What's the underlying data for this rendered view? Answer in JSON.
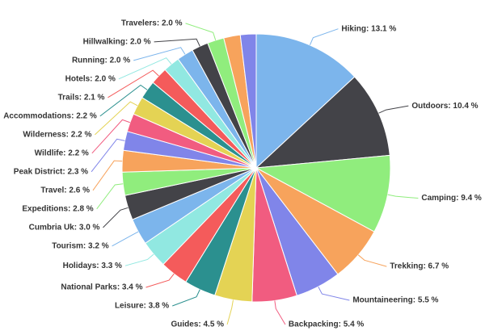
{
  "chart_data": {
    "type": "pie",
    "values": [
      13.1,
      10.4,
      9.4,
      6.7,
      5.5,
      5.4,
      4.5,
      3.8,
      3.4,
      3.3,
      3.2,
      3.0,
      2.8,
      2.6,
      2.3,
      2.2,
      2.2,
      2.2,
      2.1,
      2.0,
      2.0,
      2.0,
      2.0,
      2.0,
      1.9
    ],
    "value_labels": [
      "Hiking: 13.1 %",
      "Outdoors: 10.4 %",
      "Camping: 9.4 %",
      "Trekking: 6.7 %",
      "Mountaineering: 5.5 %",
      "Backpacking: 5.4 %",
      "Guides: 4.5 %",
      "Leisure: 3.8 %",
      "National Parks: 3.4 %",
      "Holidays: 3.3 %",
      "Tourism: 3.2 %",
      "Cumbria Uk: 3.0 %",
      "Expeditions: 2.8 %",
      "Travel: 2.6 %",
      "Peak District: 2.3 %",
      "Wildlife: 2.2 %",
      "Wilderness: 2.2 %",
      "Accommodations: 2.2 %",
      "Trails: 2.1 %",
      "Hotels: 2.0 %",
      "Running: 2.0 %",
      "Hillwalking: 2.0 %",
      "Travelers: 2.0 %",
      null,
      null
    ],
    "colors": [
      "#7cb5ec",
      "#434348",
      "#90ed7d",
      "#f7a35c",
      "#8085e9",
      "#f15c80",
      "#e4d354",
      "#2b908f",
      "#f45b5b",
      "#91e8e1",
      "#7cb5ec",
      "#434348",
      "#90ed7d",
      "#f7a35c",
      "#8085e9",
      "#f15c80",
      "#e4d354",
      "#2b908f",
      "#f45b5b",
      "#91e8e1",
      "#7cb5ec",
      "#434348",
      "#90ed7d",
      "#f7a35c",
      "#8085e9"
    ]
  }
}
